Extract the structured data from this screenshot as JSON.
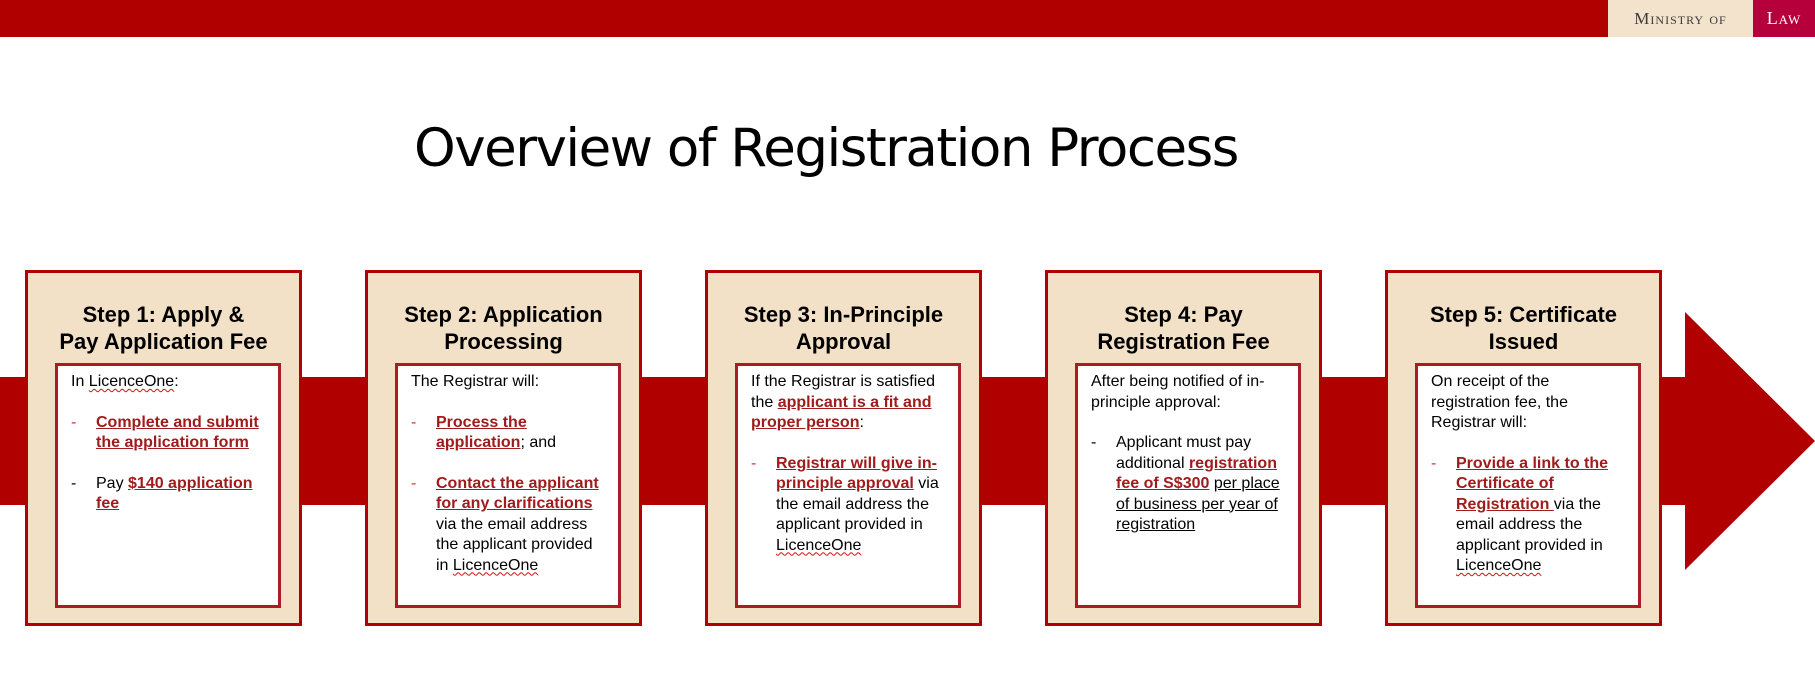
{
  "header": {
    "logo_ministry": "Ministry of",
    "logo_law": "Law"
  },
  "title": "Overview of Registration Process",
  "steps": [
    {
      "title_line1": "Step 1: Apply &",
      "title_line2": "Pay Application Fee",
      "intro_prefix": "In ",
      "intro_link": "LicenceOne",
      "intro_suffix": ":",
      "item1_hl": "Complete and submit the application form",
      "item2_prefix": "Pay ",
      "item2_hl": "$140 application fee"
    },
    {
      "title_line1": "Step 2: Application",
      "title_line2": "Processing",
      "intro": "The Registrar will:",
      "item1_hl": "Process the application",
      "item1_suffix": "; and",
      "item2_hl": "Contact the applicant for any clarifications",
      "item2_suffix": " via the email address the applicant provided in ",
      "item2_link": "LicenceOne"
    },
    {
      "title_line1": "Step 3: In-Principle",
      "title_line2": "Approval",
      "intro_prefix": "If the Registrar is satisfied the ",
      "intro_hl": "applicant is a fit and proper person",
      "intro_suffix": ":",
      "item1_hl": "Registrar will give in-principle approval",
      "item1_suffix": " via the email address the applicant provided in ",
      "item1_link": "LicenceOne"
    },
    {
      "title_line1": "Step 4: Pay",
      "title_line2": "Registration Fee",
      "intro": "After being notified of in-principle approval:",
      "item1_prefix": "Applicant must pay additional ",
      "item1_hl": "registration fee of S$300",
      "item1_ul": "per place of business per year of registration"
    },
    {
      "title_line1": "Step 5: Certificate",
      "title_line2": "Issued",
      "intro": "On receipt of the registration fee, the Registrar will:",
      "item1_hl": "Provide a link to the Certificate of Registration ",
      "item1_suffix": "via the email address the applicant provided in ",
      "item1_link": "LicenceOne"
    }
  ]
}
